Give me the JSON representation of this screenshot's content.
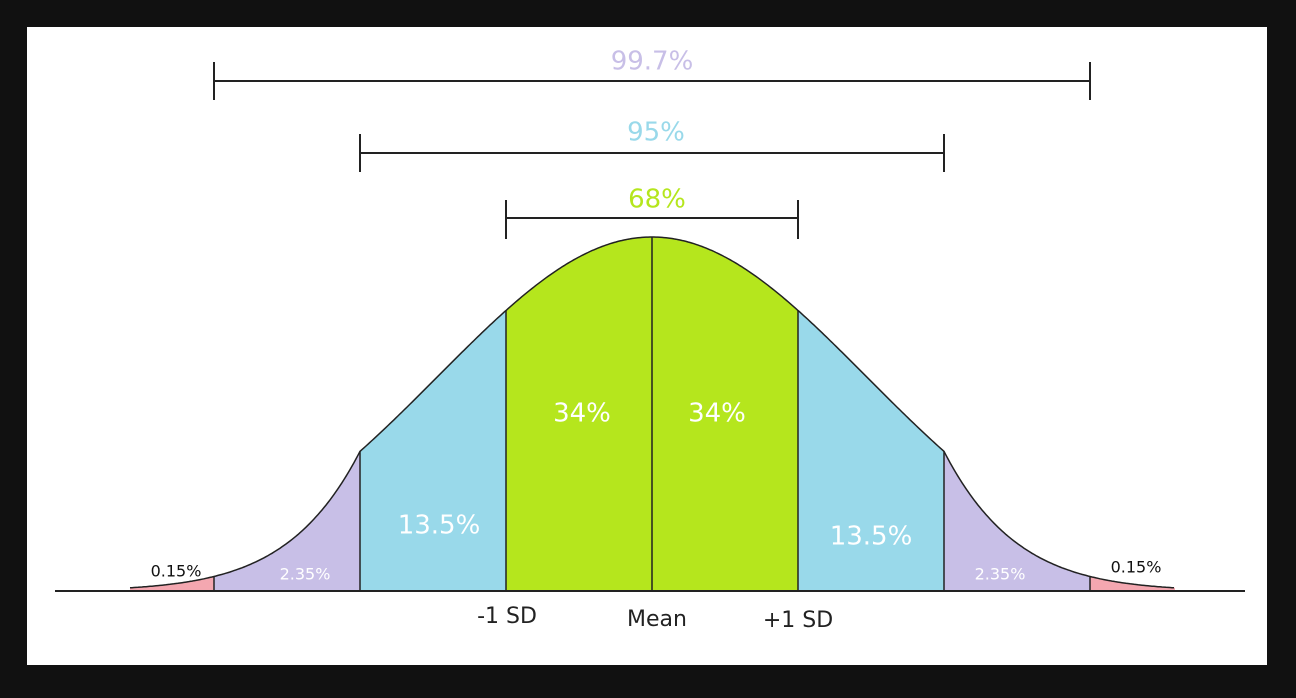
{
  "brackets": [
    {
      "label": "99.7%"
    },
    {
      "label": "95%"
    },
    {
      "label": "68%"
    }
  ],
  "regions": [
    {
      "label": "0.15%"
    },
    {
      "label": "2.35%"
    },
    {
      "label": "13.5%"
    },
    {
      "label": "34%"
    },
    {
      "label": "34%"
    },
    {
      "label": "13.5%"
    },
    {
      "label": "2.35%"
    },
    {
      "label": "0.15%"
    }
  ],
  "axis_labels": [
    "-1 SD",
    "Mean",
    "+1 SD"
  ]
}
